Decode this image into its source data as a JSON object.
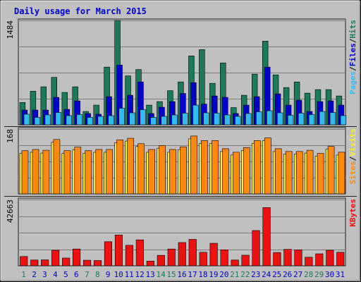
{
  "chart_data": [
    {
      "type": "bar",
      "title": "Daily usage for March 2015",
      "categories": [
        "1",
        "2",
        "3",
        "4",
        "5",
        "6",
        "7",
        "8",
        "9",
        "10",
        "11",
        "12",
        "13",
        "14",
        "15",
        "16",
        "17",
        "18",
        "19",
        "20",
        "21",
        "22",
        "23",
        "24",
        "25",
        "26",
        "27",
        "28",
        "29",
        "30",
        "31"
      ],
      "weekend_days": [
        "1",
        "7",
        "8",
        "14",
        "15",
        "21",
        "22",
        "28",
        "29"
      ],
      "ymax_label": "1484",
      "ylim": [
        0,
        1484
      ],
      "series": [
        {
          "name": "Hits",
          "color": "#1a7a5a",
          "values": [
            318,
            477,
            540,
            675,
            460,
            540,
            190,
            280,
            820,
            1484,
            695,
            785,
            280,
            330,
            485,
            610,
            980,
            1070,
            590,
            880,
            245,
            420,
            720,
            1190,
            710,
            530,
            610,
            450,
            500,
            500,
            410
          ]
        },
        {
          "name": "Files",
          "color": "#0000cc",
          "values": [
            210,
            210,
            210,
            390,
            220,
            340,
            160,
            150,
            400,
            850,
            420,
            610,
            160,
            250,
            330,
            445,
            600,
            295,
            410,
            390,
            160,
            280,
            400,
            820,
            440,
            280,
            350,
            190,
            330,
            340,
            280
          ]
        },
        {
          "name": "Pages",
          "color": "#33bbee",
          "values": [
            150,
            105,
            140,
            175,
            130,
            145,
            105,
            120,
            130,
            235,
            170,
            215,
            105,
            120,
            140,
            165,
            280,
            170,
            165,
            140,
            120,
            160,
            185,
            200,
            170,
            135,
            165,
            145,
            190,
            175,
            130
          ]
        }
      ],
      "legend": [
        "Pages",
        "/",
        "Files",
        "/",
        "Hits"
      ]
    },
    {
      "type": "bar",
      "categories": [
        "1",
        "2",
        "3",
        "4",
        "5",
        "6",
        "7",
        "8",
        "9",
        "10",
        "11",
        "12",
        "13",
        "14",
        "15",
        "16",
        "17",
        "18",
        "19",
        "20",
        "21",
        "22",
        "23",
        "24",
        "25",
        "26",
        "27",
        "28",
        "29",
        "30",
        "31"
      ],
      "ymax_label": "168",
      "ylim": [
        0,
        168
      ],
      "series": [
        {
          "name": "Visits",
          "color": "#ffee33",
          "values": [
            112,
            115,
            113,
            141,
            112,
            121,
            112,
            115,
            115,
            140,
            144,
            130,
            115,
            125,
            115,
            122,
            150,
            138,
            138,
            117,
            108,
            120,
            138,
            145,
            117,
            110,
            110,
            113,
            105,
            123,
            108
          ]
        },
        {
          "name": "Sites",
          "color": "#ff8811",
          "values": [
            112,
            115,
            113,
            141,
            112,
            121,
            112,
            115,
            115,
            140,
            144,
            130,
            115,
            125,
            115,
            122,
            150,
            138,
            138,
            117,
            108,
            120,
            138,
            145,
            117,
            110,
            110,
            113,
            105,
            123,
            108
          ]
        }
      ],
      "legend": [
        "Sites",
        "/",
        "Visits"
      ]
    },
    {
      "type": "bar",
      "categories": [
        "1",
        "2",
        "3",
        "4",
        "5",
        "6",
        "7",
        "8",
        "9",
        "10",
        "11",
        "12",
        "13",
        "14",
        "15",
        "16",
        "17",
        "18",
        "19",
        "20",
        "21",
        "22",
        "23",
        "24",
        "25",
        "26",
        "27",
        "28",
        "29",
        "30",
        "31"
      ],
      "ymax_label": "42663",
      "ylim": [
        0,
        42663
      ],
      "series": [
        {
          "name": "KBytes",
          "color": "#ee1111",
          "values": [
            6000,
            3700,
            3800,
            10000,
            5000,
            10800,
            3600,
            3400,
            15500,
            19800,
            13200,
            16700,
            3000,
            6700,
            10800,
            15000,
            17000,
            8700,
            14500,
            10300,
            3700,
            6800,
            22700,
            37500,
            8600,
            10600,
            10200,
            5500,
            7700,
            10000,
            8700
          ]
        }
      ],
      "legend": [
        "KBytes"
      ]
    }
  ],
  "colors": {
    "background": "#c0c0c0",
    "title": "#0000cc",
    "axis_text": "#000000",
    "weekday_label": "#0000cc",
    "weekend_label": "#1a7a5a",
    "bar_outline": "#000000",
    "separator": "#222222"
  }
}
